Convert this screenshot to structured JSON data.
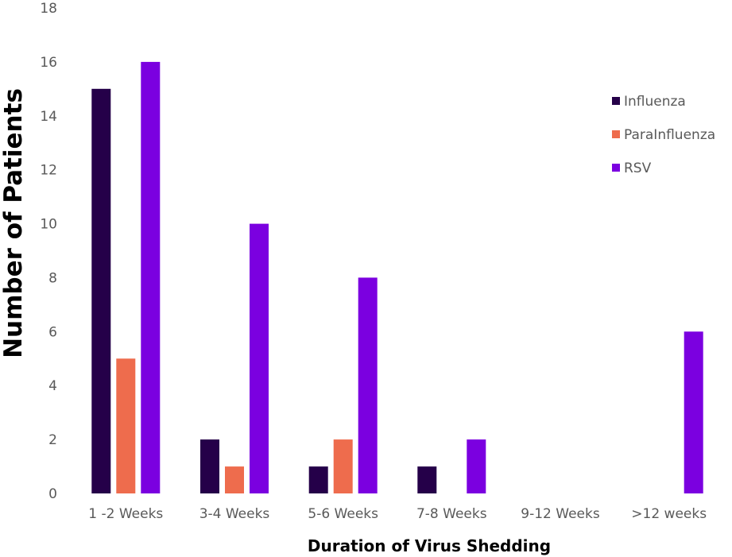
{
  "chart_data": {
    "type": "bar",
    "title": "",
    "xlabel": "Duration of Virus Shedding",
    "ylabel": "Number of Patients",
    "categories": [
      "1 -2 Weeks",
      "3-4 Weeks",
      "5-6 Weeks",
      "7-8 Weeks",
      "9-12 Weeks",
      ">12 weeks"
    ],
    "series": [
      {
        "name": "Influenza",
        "color": "#250049",
        "values": [
          15,
          2,
          1,
          1,
          0,
          0
        ]
      },
      {
        "name": "ParaInfluenza",
        "color": "#ee6c4d",
        "values": [
          5,
          1,
          2,
          0,
          0,
          0
        ]
      },
      {
        "name": "RSV",
        "color": "#7b00e0",
        "values": [
          16,
          10,
          8,
          2,
          0,
          6
        ]
      }
    ],
    "ylim": [
      0,
      18
    ],
    "yticks": [
      0,
      2,
      4,
      6,
      8,
      10,
      12,
      14,
      16,
      18
    ],
    "grid": false,
    "legend": "right"
  }
}
